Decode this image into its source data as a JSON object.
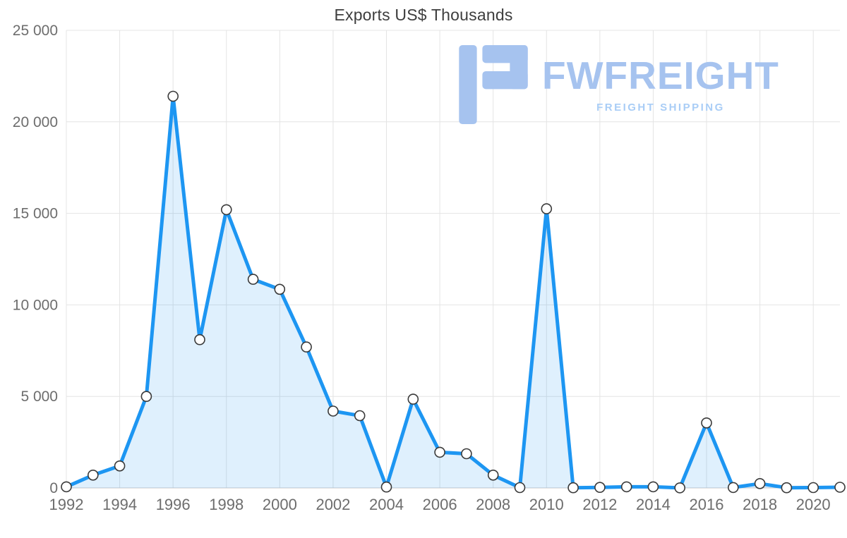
{
  "watermark": {
    "brand": "FWFREIGHT",
    "tagline": "FREIGHT SHIPPING",
    "color": "#a6c3ef",
    "tagline_color": "#a9cdf6"
  },
  "chart_data": {
    "type": "area",
    "title": "Exports US$ Thousands",
    "xlabel": "",
    "ylabel": "",
    "x": [
      1992,
      1993,
      1994,
      1995,
      1996,
      1997,
      1998,
      1999,
      2000,
      2001,
      2002,
      2003,
      2004,
      2005,
      2006,
      2007,
      2008,
      2009,
      2010,
      2011,
      2012,
      2013,
      2014,
      2015,
      2016,
      2017,
      2018,
      2019,
      2020,
      2021
    ],
    "values": [
      60,
      700,
      1200,
      5000,
      21400,
      8100,
      15200,
      11400,
      10850,
      7700,
      4200,
      3950,
      50,
      4850,
      1950,
      1870,
      700,
      20,
      15250,
      10,
      30,
      60,
      60,
      5,
      3550,
      25,
      240,
      10,
      20,
      40
    ],
    "ylim": [
      0,
      25000
    ],
    "ytick_interval": 5000,
    "y_tick_labels": [
      "0",
      "5 000",
      "10 000",
      "15 000",
      "20 000",
      "25 000"
    ],
    "x_tick_labels": [
      1992,
      1994,
      1996,
      1998,
      2000,
      2002,
      2004,
      2006,
      2008,
      2010,
      2012,
      2014,
      2016,
      2018,
      2020
    ],
    "grid": true,
    "legend": "none",
    "line_color": "#1d96f2",
    "fill_color": "rgba(30,150,242,0.14)",
    "marker_fill": "#ffffff",
    "marker_stroke": "#3a3a3a",
    "grid_color": "#e4e4e4",
    "axis_line_color": "#c9c9c9",
    "tick_label_color": "#6d6d6d",
    "title_color": "#3e3e3e"
  }
}
